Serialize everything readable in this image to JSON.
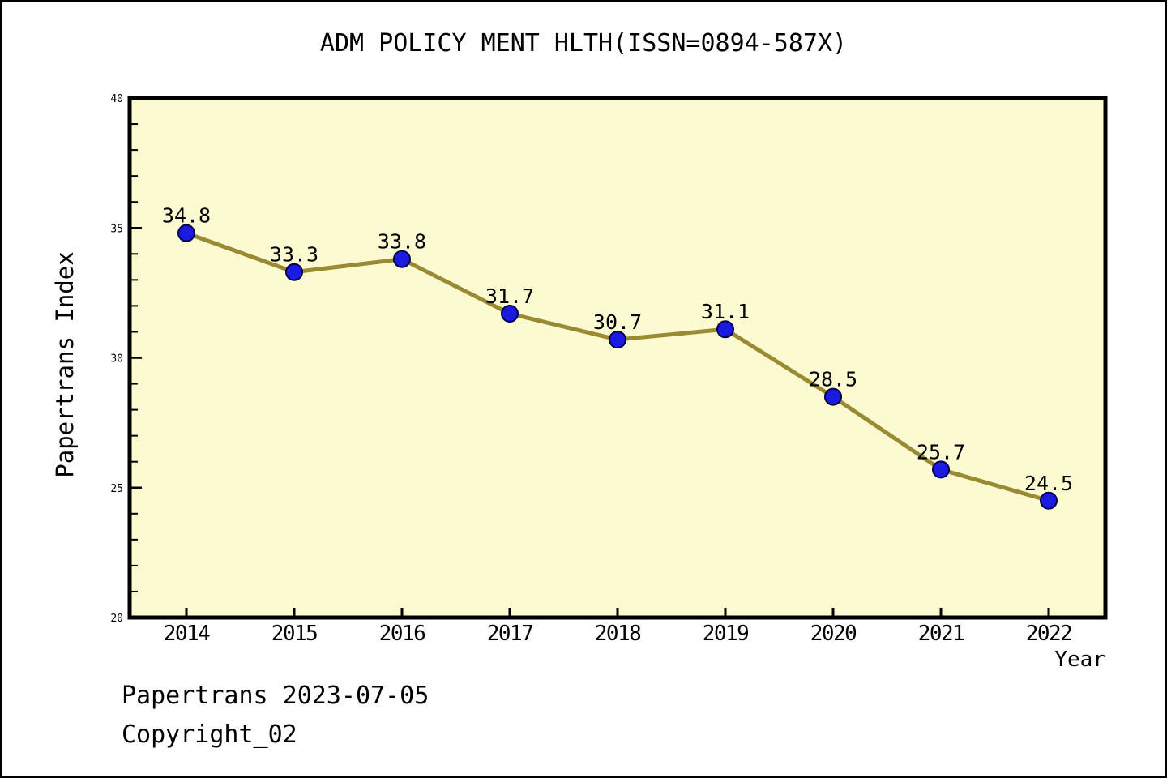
{
  "footer": {
    "line1": "Papertrans 2023-07-05",
    "line2": "Copyright_02"
  },
  "chart_data": {
    "type": "line",
    "title": "ADM POLICY MENT HLTH(ISSN=0894-587X)",
    "xlabel": "Year",
    "ylabel": "Papertrans Index",
    "categories": [
      "2014",
      "2015",
      "2016",
      "2017",
      "2018",
      "2019",
      "2020",
      "2021",
      "2022"
    ],
    "series": [
      {
        "name": "Papertrans Index",
        "values": [
          34.8,
          33.3,
          33.8,
          31.7,
          30.7,
          31.1,
          28.5,
          25.7,
          24.5
        ]
      }
    ],
    "point_labels": [
      "34.8",
      "33.3",
      "33.8",
      "31.7",
      "30.7",
      "31.1",
      "28.5",
      "25.7",
      "24.5"
    ],
    "ylim": [
      20,
      40
    ],
    "yticks": [
      20,
      25,
      30,
      35,
      40
    ],
    "ytick_minor_step": 1,
    "grid": false,
    "legend": "none",
    "colors": {
      "plot_bg": "#FCFAD0",
      "line": "#998A33",
      "marker_fill": "#1A1AE0",
      "marker_edge": "#000050",
      "axis": "#000000",
      "text": "#000000"
    }
  }
}
